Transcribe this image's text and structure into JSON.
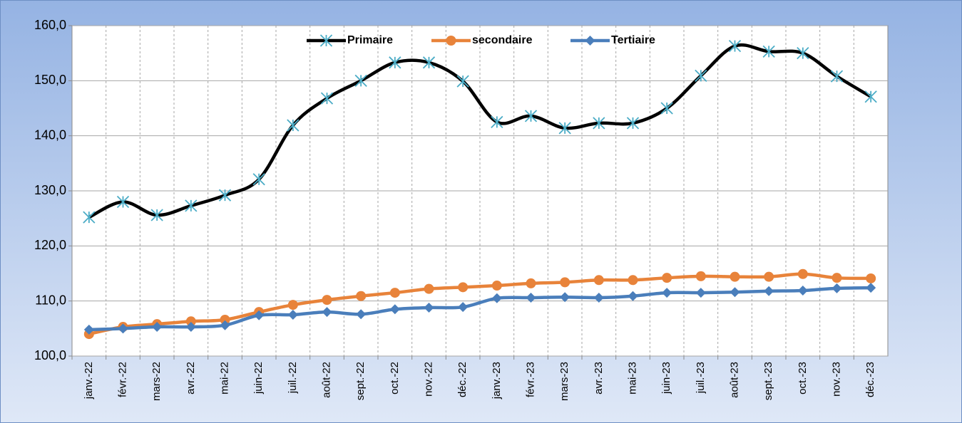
{
  "chart_data": {
    "type": "line",
    "categories": [
      "janv.-22",
      "févr.-22",
      "mars-22",
      "avr.-22",
      "mai-22",
      "juin-22",
      "juil.-22",
      "août-22",
      "sept.-22",
      "oct.-22",
      "nov.-22",
      "déc.-22",
      "janv.-23",
      "févr.-23",
      "mars-23",
      "avr.-23",
      "mai-23",
      "juin-23",
      "juil.-23",
      "août-23",
      "sept.-23",
      "oct.-23",
      "nov.-23",
      "déc.-23"
    ],
    "series": [
      {
        "name": "Primaire",
        "color": "#000000",
        "marker_color": "#4bacc6",
        "marker": "star",
        "values": [
          125.2,
          128.0,
          125.6,
          127.3,
          129.2,
          132.1,
          141.9,
          146.8,
          150.0,
          153.3,
          153.3,
          149.9,
          142.5,
          143.6,
          141.4,
          142.3,
          142.3,
          145.0,
          150.9,
          156.3,
          155.3,
          155.0,
          150.8,
          147.1
        ]
      },
      {
        "name": "secondaire",
        "color": "#e8833a",
        "marker_color": "#e8833a",
        "marker": "circle",
        "values": [
          104.0,
          105.3,
          105.8,
          106.3,
          106.6,
          108.0,
          109.3,
          110.2,
          110.9,
          111.5,
          112.2,
          112.5,
          112.8,
          113.2,
          113.4,
          113.8,
          113.8,
          114.2,
          114.5,
          114.4,
          114.4,
          114.9,
          114.2,
          114.1
        ]
      },
      {
        "name": "Tertiaire",
        "color": "#4a7ebb",
        "marker_color": "#4a7ebb",
        "marker": "diamond",
        "values": [
          104.8,
          105.0,
          105.3,
          105.3,
          105.6,
          107.4,
          107.5,
          108.0,
          107.6,
          108.5,
          108.8,
          108.9,
          110.5,
          110.6,
          110.7,
          110.6,
          110.9,
          111.5,
          111.5,
          111.6,
          111.8,
          111.9,
          112.3,
          112.4
        ]
      }
    ],
    "ylim": [
      100,
      160
    ],
    "yticks": [
      {
        "value": 100,
        "label": "100,0"
      },
      {
        "value": 110,
        "label": "110,0"
      },
      {
        "value": 120,
        "label": "120,0"
      },
      {
        "value": 130,
        "label": "130,0"
      },
      {
        "value": 140,
        "label": "140,0"
      },
      {
        "value": 150,
        "label": "150,0"
      },
      {
        "value": 160,
        "label": "160,0"
      }
    ],
    "grid": true,
    "legend": "top",
    "smooth": true
  }
}
